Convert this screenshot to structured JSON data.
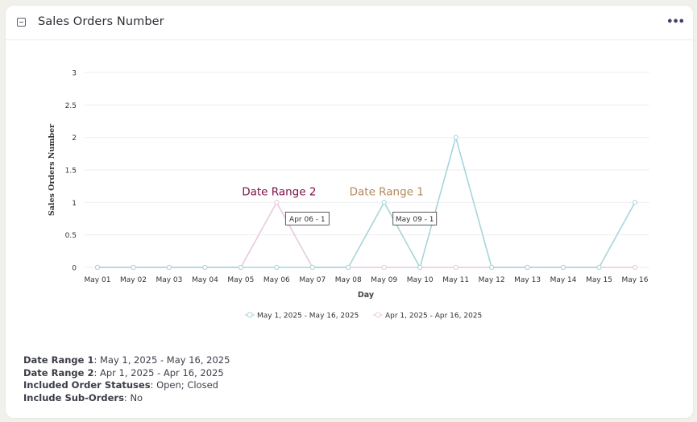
{
  "widget": {
    "title": "Sales Orders Number"
  },
  "colors": {
    "series1": "#a8d5d9",
    "series2": "#e8c8e0",
    "grid": "#eeeeee",
    "annotation1": "#b5885a",
    "annotation2": "#7a1047"
  },
  "chart_data": {
    "type": "line",
    "xlabel": "Day",
    "ylabel": "Sales Orders Number",
    "categories": [
      "May 01",
      "May 02",
      "May 03",
      "May 04",
      "May 05",
      "May 06",
      "May 07",
      "May 08",
      "May 09",
      "May 10",
      "May 11",
      "May 12",
      "May 13",
      "May 14",
      "May 15",
      "May 16"
    ],
    "y_ticks": [
      "0",
      "0.5",
      "1",
      "1.5",
      "2",
      "2.5",
      "3"
    ],
    "ylim": [
      0,
      3
    ],
    "grid": true,
    "legend_position": "bottom",
    "series": [
      {
        "name": "May 1, 2025 - May 16, 2025",
        "color": "#a8d5d9",
        "values": [
          0,
          0,
          0,
          0,
          0,
          0,
          0,
          0,
          1,
          0,
          2,
          0,
          0,
          0,
          0,
          1
        ]
      },
      {
        "name": "Apr 1, 2025 - Apr 16, 2025",
        "color": "#e8c8e0",
        "values": [
          0,
          0,
          0,
          0,
          0,
          1,
          0,
          0,
          0,
          0,
          0,
          0,
          0,
          0,
          0,
          0
        ]
      }
    ],
    "annotations": [
      {
        "text": "Date Range 2",
        "color": "#7a1047",
        "x_index": 5,
        "y": 1
      },
      {
        "text": "Date Range 1",
        "color": "#b5885a",
        "x_index": 8,
        "y": 1
      }
    ],
    "tooltips": [
      {
        "text": "Apr 06 - 1",
        "x_index": 5,
        "y": 1
      },
      {
        "text": "May 09 - 1",
        "x_index": 8,
        "y": 1
      }
    ]
  },
  "footer": {
    "range1_label": "Date Range 1",
    "range1_value": ": May 1, 2025 - May 16, 2025",
    "range2_label": "Date Range 2",
    "range2_value": ": Apr 1, 2025 - Apr 16, 2025",
    "statuses_label": "Included Order Statuses",
    "statuses_value": ": Open; Closed",
    "suborders_label": "Include Sub-Orders",
    "suborders_value": ": No"
  }
}
